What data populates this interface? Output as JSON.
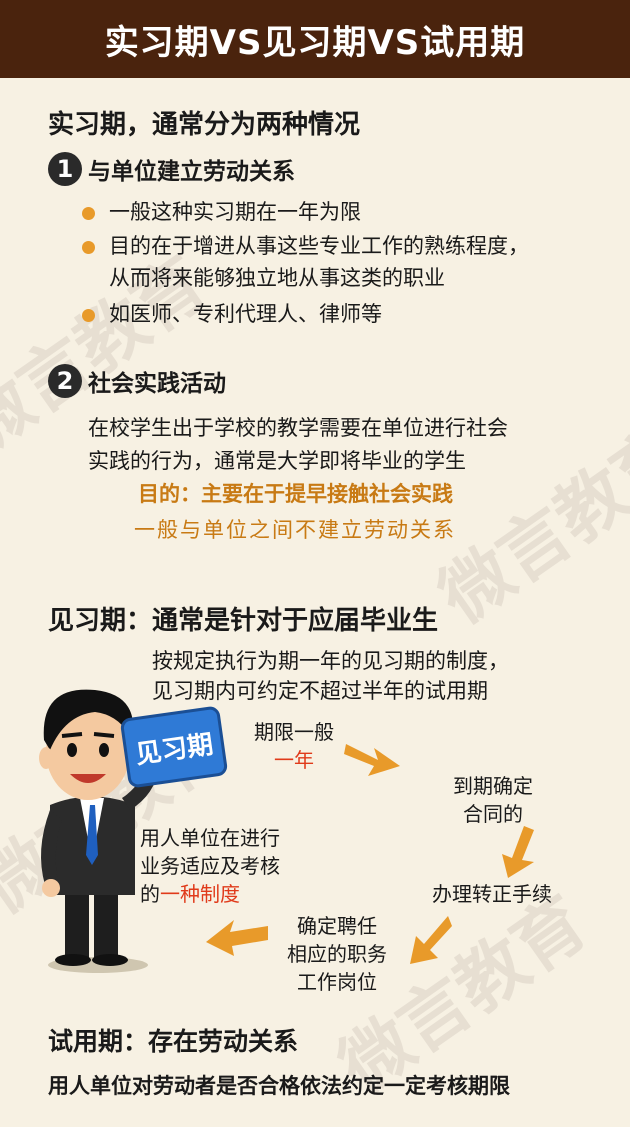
{
  "header": {
    "title": "实习期VS见习期VS试用期"
  },
  "watermark": {
    "text": "微言教育"
  },
  "internship": {
    "title": "实习期，通常分为两种情况",
    "case1": {
      "num": "1",
      "title": "与单位建立劳动关系",
      "bullets": [
        {
          "line1": "一般这种实习期在一年为限",
          "line2": ""
        },
        {
          "line1": "目的在于增进从事这些专业工作的熟练程度，",
          "line2": "从而将来能够独立地从事这类的职业"
        },
        {
          "line1": "如医师、专利代理人、律师等",
          "line2": ""
        }
      ]
    },
    "case2": {
      "num": "2",
      "title": "社会实践活动",
      "para1": "在校学生出于学校的教学需要在单位进行社会",
      "para2": "实践的行为，通常是大学即将毕业的学生",
      "purpose": "目的：主要在于提早接触社会实践",
      "note": "一般与单位之间不建立劳动关系"
    }
  },
  "probation_trainee": {
    "title": "见习期：通常是针对于应届毕业生",
    "desc1": "按规定执行为期一年的见习期的制度，",
    "desc2": "见习期内可约定不超过半年的试用期",
    "sign_label": "见习期",
    "flow": {
      "step1_a": "期限一般",
      "step1_b": "一年",
      "step2_a": "到期确定",
      "step2_b": "合同的",
      "step3": "办理转正手续",
      "step4_a": "确定聘任",
      "step4_b": "相应的职务",
      "step4_c": "工作岗位",
      "step5_a": "用人单位在进行",
      "step5_b": "业务适应及考核",
      "step5_c_pre": "的",
      "step5_c_red": "一种制度"
    }
  },
  "trial": {
    "title": "试用期：存在劳动关系",
    "desc": "用人单位对劳动者是否合格依法约定一定考核期限"
  },
  "colors": {
    "header_bg": "#4a230d",
    "accent_orange": "#e89a2a",
    "text_orange": "#c87a14",
    "red": "#e03a1a"
  }
}
